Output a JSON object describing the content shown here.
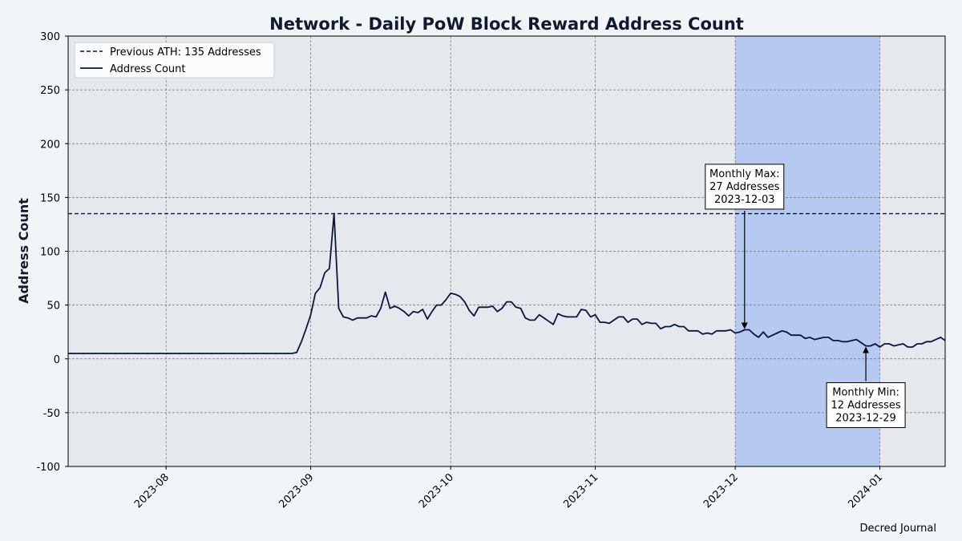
{
  "chart_data": {
    "type": "line",
    "title": "Network - Daily PoW Block Reward Address Count",
    "xlabel": "",
    "ylabel": "Address Count",
    "ylim": [
      -100,
      300
    ],
    "xlim": [
      "2023-07-11",
      "2024-01-15"
    ],
    "yticks": [
      -100,
      -50,
      0,
      50,
      100,
      150,
      200,
      250,
      300
    ],
    "xticks": [
      "2023-08",
      "2023-09",
      "2023-10",
      "2023-11",
      "2023-12",
      "2024-01"
    ],
    "grid": true,
    "legend_position": "top-left",
    "reference_line": {
      "label": "Previous ATH: 135 Addresses",
      "value": 135
    },
    "highlight_range": [
      "2023-12-01",
      "2024-01-01"
    ],
    "series": [
      {
        "name": "Address Count",
        "color": "#0b1640",
        "points": [
          [
            "2023-07-11",
            5
          ],
          [
            "2023-07-20",
            5
          ],
          [
            "2023-08-01",
            5
          ],
          [
            "2023-08-15",
            5
          ],
          [
            "2023-08-25",
            5
          ],
          [
            "2023-08-28",
            5
          ],
          [
            "2023-08-29",
            6
          ],
          [
            "2023-08-30",
            16
          ],
          [
            "2023-08-31",
            28
          ],
          [
            "2023-09-01",
            41
          ],
          [
            "2023-09-02",
            61
          ],
          [
            "2023-09-03",
            66
          ],
          [
            "2023-09-04",
            80
          ],
          [
            "2023-09-05",
            84
          ],
          [
            "2023-09-06",
            135
          ],
          [
            "2023-09-07",
            47
          ],
          [
            "2023-09-08",
            39
          ],
          [
            "2023-09-09",
            38
          ],
          [
            "2023-09-10",
            36
          ],
          [
            "2023-09-11",
            38
          ],
          [
            "2023-09-12",
            38
          ],
          [
            "2023-09-13",
            38
          ],
          [
            "2023-09-14",
            40
          ],
          [
            "2023-09-15",
            39
          ],
          [
            "2023-09-16",
            47
          ],
          [
            "2023-09-17",
            62
          ],
          [
            "2023-09-18",
            47
          ],
          [
            "2023-09-19",
            49
          ],
          [
            "2023-09-20",
            47
          ],
          [
            "2023-09-21",
            44
          ],
          [
            "2023-09-22",
            40
          ],
          [
            "2023-09-23",
            44
          ],
          [
            "2023-09-24",
            43
          ],
          [
            "2023-09-25",
            46
          ],
          [
            "2023-09-26",
            37
          ],
          [
            "2023-09-27",
            44
          ],
          [
            "2023-09-28",
            50
          ],
          [
            "2023-09-29",
            50
          ],
          [
            "2023-09-30",
            55
          ],
          [
            "2023-10-01",
            61
          ],
          [
            "2023-10-02",
            60
          ],
          [
            "2023-10-03",
            58
          ],
          [
            "2023-10-04",
            53
          ],
          [
            "2023-10-05",
            45
          ],
          [
            "2023-10-06",
            40
          ],
          [
            "2023-10-07",
            48
          ],
          [
            "2023-10-08",
            48
          ],
          [
            "2023-10-09",
            48
          ],
          [
            "2023-10-10",
            49
          ],
          [
            "2023-10-11",
            44
          ],
          [
            "2023-10-12",
            47
          ],
          [
            "2023-10-13",
            53
          ],
          [
            "2023-10-14",
            53
          ],
          [
            "2023-10-15",
            48
          ],
          [
            "2023-10-16",
            47
          ],
          [
            "2023-10-17",
            38
          ],
          [
            "2023-10-18",
            36
          ],
          [
            "2023-10-19",
            36
          ],
          [
            "2023-10-20",
            41
          ],
          [
            "2023-10-21",
            38
          ],
          [
            "2023-10-22",
            35
          ],
          [
            "2023-10-23",
            32
          ],
          [
            "2023-10-24",
            42
          ],
          [
            "2023-10-25",
            40
          ],
          [
            "2023-10-26",
            39
          ],
          [
            "2023-10-27",
            39
          ],
          [
            "2023-10-28",
            39
          ],
          [
            "2023-10-29",
            46
          ],
          [
            "2023-10-30",
            45
          ],
          [
            "2023-10-31",
            39
          ],
          [
            "2023-11-01",
            41
          ],
          [
            "2023-11-02",
            34
          ],
          [
            "2023-11-03",
            34
          ],
          [
            "2023-11-04",
            33
          ],
          [
            "2023-11-05",
            36
          ],
          [
            "2023-11-06",
            39
          ],
          [
            "2023-11-07",
            39
          ],
          [
            "2023-11-08",
            34
          ],
          [
            "2023-11-09",
            37
          ],
          [
            "2023-11-10",
            37
          ],
          [
            "2023-11-11",
            32
          ],
          [
            "2023-11-12",
            34
          ],
          [
            "2023-11-13",
            33
          ],
          [
            "2023-11-14",
            33
          ],
          [
            "2023-11-15",
            28
          ],
          [
            "2023-11-16",
            30
          ],
          [
            "2023-11-17",
            30
          ],
          [
            "2023-11-18",
            32
          ],
          [
            "2023-11-19",
            30
          ],
          [
            "2023-11-20",
            30
          ],
          [
            "2023-11-21",
            26
          ],
          [
            "2023-11-22",
            26
          ],
          [
            "2023-11-23",
            26
          ],
          [
            "2023-11-24",
            23
          ],
          [
            "2023-11-25",
            24
          ],
          [
            "2023-11-26",
            23
          ],
          [
            "2023-11-27",
            26
          ],
          [
            "2023-11-28",
            26
          ],
          [
            "2023-11-29",
            26
          ],
          [
            "2023-11-30",
            27
          ],
          [
            "2023-12-01",
            24
          ],
          [
            "2023-12-02",
            25
          ],
          [
            "2023-12-03",
            27
          ],
          [
            "2023-12-04",
            27
          ],
          [
            "2023-12-05",
            23
          ],
          [
            "2023-12-06",
            20
          ],
          [
            "2023-12-07",
            25
          ],
          [
            "2023-12-08",
            20
          ],
          [
            "2023-12-09",
            22
          ],
          [
            "2023-12-10",
            24
          ],
          [
            "2023-12-11",
            26
          ],
          [
            "2023-12-12",
            25
          ],
          [
            "2023-12-13",
            22
          ],
          [
            "2023-12-14",
            22
          ],
          [
            "2023-12-15",
            22
          ],
          [
            "2023-12-16",
            19
          ],
          [
            "2023-12-17",
            20
          ],
          [
            "2023-12-18",
            18
          ],
          [
            "2023-12-19",
            19
          ],
          [
            "2023-12-20",
            20
          ],
          [
            "2023-12-21",
            20
          ],
          [
            "2023-12-22",
            17
          ],
          [
            "2023-12-23",
            17
          ],
          [
            "2023-12-24",
            16
          ],
          [
            "2023-12-25",
            16
          ],
          [
            "2023-12-26",
            17
          ],
          [
            "2023-12-27",
            18
          ],
          [
            "2023-12-28",
            15
          ],
          [
            "2023-12-29",
            12
          ],
          [
            "2023-12-30",
            12
          ],
          [
            "2023-12-31",
            14
          ],
          [
            "2024-01-01",
            11
          ],
          [
            "2024-01-02",
            14
          ],
          [
            "2024-01-03",
            14
          ],
          [
            "2024-01-04",
            12
          ],
          [
            "2024-01-05",
            13
          ],
          [
            "2024-01-06",
            14
          ],
          [
            "2024-01-07",
            11
          ],
          [
            "2024-01-08",
            11
          ],
          [
            "2024-01-09",
            14
          ],
          [
            "2024-01-10",
            14
          ],
          [
            "2024-01-11",
            16
          ],
          [
            "2024-01-12",
            16
          ],
          [
            "2024-01-13",
            18
          ],
          [
            "2024-01-14",
            20
          ],
          [
            "2024-01-15",
            17
          ]
        ]
      }
    ],
    "annotations": [
      {
        "lines": [
          "Monthly Max:",
          "27 Addresses",
          "2023-12-03"
        ],
        "x": "2023-12-03",
        "y": 27,
        "text_y": 160
      },
      {
        "lines": [
          "Monthly Min:",
          "12 Addresses",
          "2023-12-29"
        ],
        "x": "2023-12-29",
        "y": 12,
        "text_y": -43
      }
    ]
  },
  "footer": {
    "credit": "Decred Journal"
  },
  "colors": {
    "page_background": "#f2f5f7",
    "plot_background": "#e5e9ed",
    "highlight": "#b6c9f1",
    "line": "#0b1640",
    "grid": "#6e7278",
    "text": "#0f1a2e"
  }
}
